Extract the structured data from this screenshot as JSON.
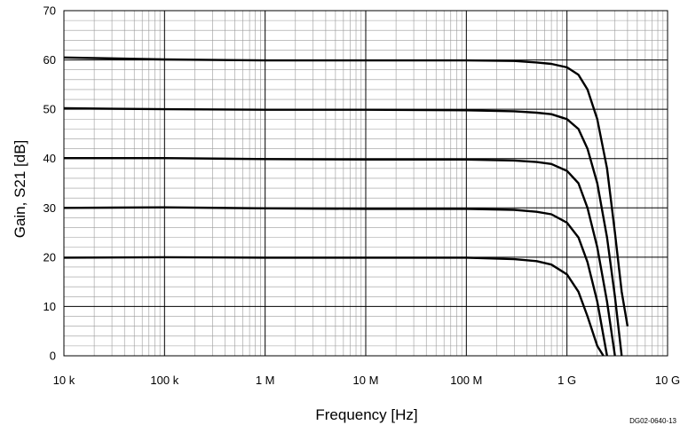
{
  "chart_data": {
    "type": "line",
    "xlabel": "Frequency [Hz]",
    "ylabel": "Gain, S21 [dB]",
    "xscale": "log",
    "xlim": [
      10000,
      10000000000
    ],
    "ylim": [
      0,
      70
    ],
    "grid": true,
    "x_ticks": [
      {
        "value": 10000,
        "label": "10 k"
      },
      {
        "value": 100000,
        "label": "100 k"
      },
      {
        "value": 1000000,
        "label": "1 M"
      },
      {
        "value": 10000000,
        "label": "10 M"
      },
      {
        "value": 100000000,
        "label": "100 M"
      },
      {
        "value": 1000000000,
        "label": "1 G"
      },
      {
        "value": 10000000000,
        "label": "10 G"
      }
    ],
    "y_ticks": [
      0,
      10,
      20,
      30,
      40,
      50,
      60,
      70
    ],
    "series": [
      {
        "points": [
          [
            10000,
            60.5
          ],
          [
            100000,
            60.1
          ],
          [
            1000000,
            59.9
          ],
          [
            10000000,
            59.9
          ],
          [
            100000000,
            59.9
          ],
          [
            300000000,
            59.8
          ],
          [
            500000000,
            59.5
          ],
          [
            700000000,
            59.2
          ],
          [
            1000000000,
            58.5
          ],
          [
            1300000000,
            57.0
          ],
          [
            1600000000,
            54.0
          ],
          [
            2000000000,
            48.0
          ],
          [
            2500000000,
            38.0
          ],
          [
            3000000000,
            25.0
          ],
          [
            3500000000,
            13.0
          ],
          [
            4000000000,
            6.0
          ]
        ]
      },
      {
        "points": [
          [
            10000,
            50.2
          ],
          [
            100000,
            50.0
          ],
          [
            1000000,
            49.9
          ],
          [
            10000000,
            49.9
          ],
          [
            100000000,
            49.8
          ],
          [
            300000000,
            49.6
          ],
          [
            500000000,
            49.3
          ],
          [
            700000000,
            49.0
          ],
          [
            1000000000,
            48.0
          ],
          [
            1300000000,
            46.0
          ],
          [
            1600000000,
            42.0
          ],
          [
            2000000000,
            35.0
          ],
          [
            2500000000,
            24.0
          ],
          [
            3000000000,
            12.0
          ],
          [
            3500000000,
            0.0
          ]
        ]
      },
      {
        "points": [
          [
            10000,
            40.1
          ],
          [
            100000,
            40.1
          ],
          [
            1000000,
            39.9
          ],
          [
            10000000,
            39.8
          ],
          [
            100000000,
            39.8
          ],
          [
            300000000,
            39.6
          ],
          [
            500000000,
            39.3
          ],
          [
            700000000,
            38.9
          ],
          [
            1000000000,
            37.5
          ],
          [
            1300000000,
            35.0
          ],
          [
            1600000000,
            30.0
          ],
          [
            2000000000,
            22.0
          ],
          [
            2500000000,
            11.0
          ],
          [
            3000000000,
            0.0
          ]
        ]
      },
      {
        "points": [
          [
            10000,
            30.0
          ],
          [
            100000,
            30.1
          ],
          [
            1000000,
            29.9
          ],
          [
            10000000,
            29.8
          ],
          [
            100000000,
            29.8
          ],
          [
            300000000,
            29.6
          ],
          [
            500000000,
            29.2
          ],
          [
            700000000,
            28.7
          ],
          [
            1000000000,
            27.0
          ],
          [
            1300000000,
            24.0
          ],
          [
            1600000000,
            19.0
          ],
          [
            2000000000,
            11.0
          ],
          [
            2500000000,
            0.0
          ]
        ]
      },
      {
        "points": [
          [
            10000,
            19.9
          ],
          [
            100000,
            20.0
          ],
          [
            1000000,
            19.9
          ],
          [
            10000000,
            19.9
          ],
          [
            100000000,
            19.9
          ],
          [
            300000000,
            19.6
          ],
          [
            500000000,
            19.2
          ],
          [
            700000000,
            18.5
          ],
          [
            1000000000,
            16.5
          ],
          [
            1300000000,
            13.0
          ],
          [
            1600000000,
            8.0
          ],
          [
            2000000000,
            2.0
          ],
          [
            2300000000,
            0.0
          ]
        ]
      }
    ]
  },
  "figure_code": "DG02-0640-13"
}
